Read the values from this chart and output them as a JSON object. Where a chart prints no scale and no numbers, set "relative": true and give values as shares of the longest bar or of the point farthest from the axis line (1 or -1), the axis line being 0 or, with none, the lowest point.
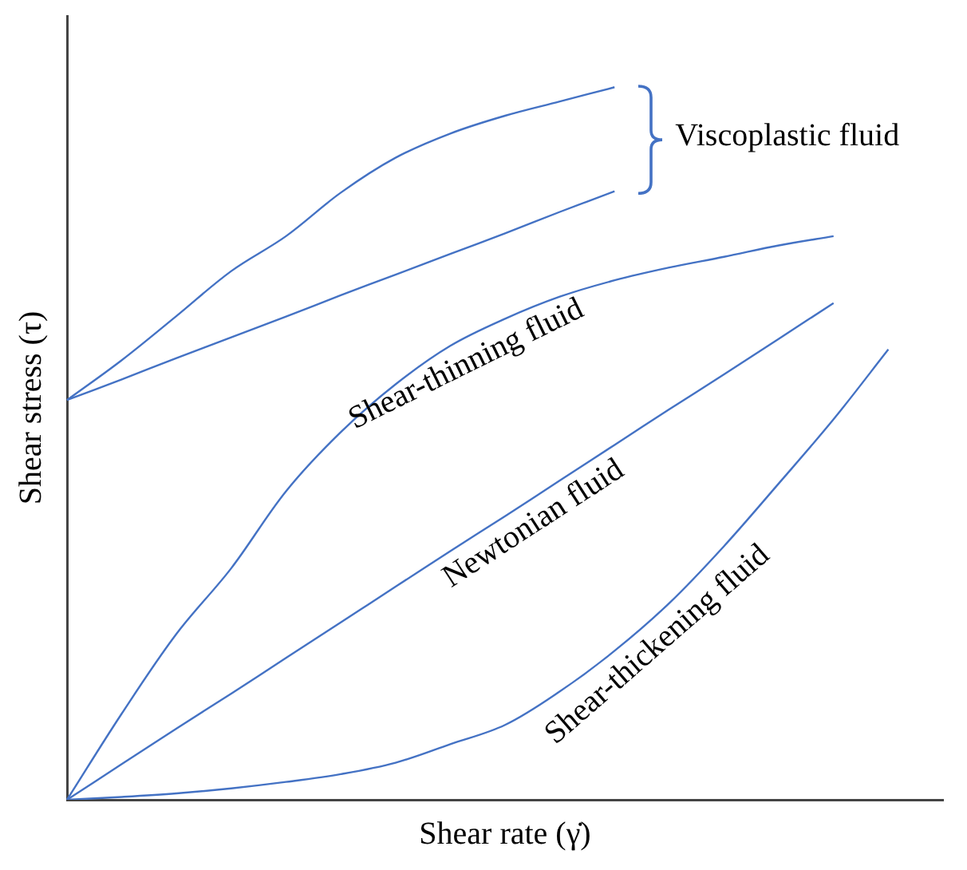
{
  "chart_data": {
    "type": "line",
    "relative": true,
    "xlabel": "Shear rate (γ̇)",
    "ylabel": "Shear stress (τ)",
    "categories": [
      null,
      null,
      null,
      null,
      null,
      null,
      null,
      null,
      null,
      null,
      null,
      null,
      null,
      null,
      null,
      null,
      null
    ],
    "grid": false,
    "legend": false,
    "marker": "none",
    "line_style": "solid",
    "annotations": [
      "Viscoplastic fluid"
    ],
    "series": [
      {
        "color": "#4472c4",
        "values": [
          0.561,
          0.617,
          0.679,
          0.742,
          0.791,
          0.852,
          0.901,
          0.935,
          0.96,
          0.98,
          1.0,
          null,
          null,
          null,
          null,
          null,
          null
        ]
      },
      {
        "color": "#4472c4",
        "values": [
          0.561,
          0.59,
          0.62,
          0.649,
          0.678,
          0.708,
          0.737,
          0.766,
          0.795,
          0.825,
          0.854,
          null,
          null,
          null,
          null,
          null,
          null
        ]
      },
      {
        "name": "Shear-thinning fluid",
        "color": "#4472c4",
        "values": [
          0,
          0.121,
          0.233,
          0.325,
          0.433,
          0.516,
          0.583,
          0.637,
          0.675,
          0.706,
          0.729,
          0.747,
          0.762,
          0.778,
          0.791,
          null,
          null
        ]
      },
      {
        "name": "Newtonian fluid",
        "color": "#4472c4",
        "values": [
          0,
          0.05,
          0.1,
          0.149,
          0.199,
          0.249,
          0.299,
          0.349,
          0.398,
          0.448,
          0.498,
          0.548,
          0.597,
          0.647,
          0.697,
          null,
          null
        ]
      },
      {
        "name": "Shear-thickening fluid",
        "color": "#4472c4",
        "values": [
          0,
          0.004,
          0.009,
          0.016,
          0.025,
          0.036,
          0.052,
          0.078,
          0.105,
          0.152,
          0.209,
          0.276,
          0.356,
          0.444,
          0.534,
          0.632,
          null
        ]
      }
    ]
  }
}
